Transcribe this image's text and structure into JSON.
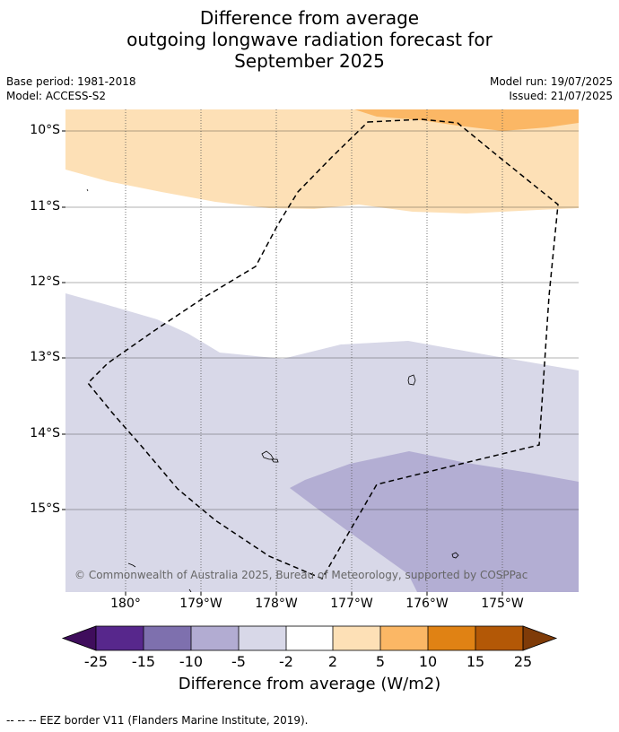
{
  "title": {
    "line1": "Difference from average",
    "line2": "outgoing longwave radiation forecast for",
    "line3": "September 2025"
  },
  "meta": {
    "base_period": "Base period: 1981-2018",
    "model": "Model: ACCESS-S2",
    "model_run": "Model run: 19/07/2025",
    "issued": "Issued: 21/07/2025"
  },
  "map": {
    "lat_range": [
      -16.1,
      -9.7
    ],
    "lon_range": [
      179.2,
      -174.0
    ],
    "lat_ticks": [
      "10°S",
      "11°S",
      "12°S",
      "13°S",
      "14°S",
      "15°S"
    ],
    "lon_ticks": [
      "180°",
      "179°W",
      "178°W",
      "177°W",
      "176°W",
      "175°W"
    ],
    "copyright": "© Commonwealth of Australia 2025, Bureau of Meteorology, supported by COSPPac",
    "colors": {
      "pos_2_5": "#fde0b6",
      "pos_5_10": "#fbb765",
      "neg_5_2": "#d8d8e8",
      "neg_10_5": "#b3aed3"
    }
  },
  "colorbar": {
    "ticks": [
      "-25",
      "-15",
      "-10",
      "-5",
      "-2",
      "2",
      "5",
      "10",
      "15",
      "25"
    ],
    "colors": [
      "#3f0d5c",
      "#57278c",
      "#7e70ae",
      "#b2acd2",
      "#d8d8e8",
      "#ffffff",
      "#fde0b6",
      "#fbb765",
      "#e08214",
      "#b35806",
      "#7f3b08"
    ],
    "label": "Difference from average (W/m2)"
  },
  "footer": "--  --  -- EEZ border V11 (Flanders Marine Institute, 2019)."
}
